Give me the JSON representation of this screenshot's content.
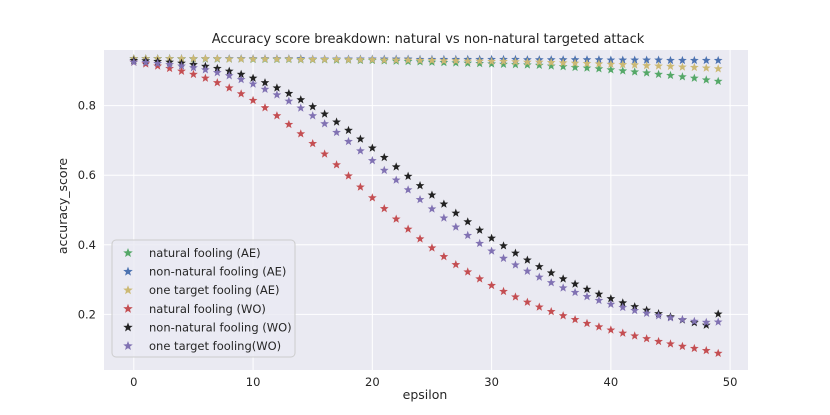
{
  "chart_data": {
    "type": "scatter",
    "title": "Accuracy score breakdown: natural vs non-natural targeted attack",
    "xlabel": "epsilon",
    "ylabel": "accuracy_score",
    "xlim": [
      -2.5,
      51.5
    ],
    "ylim": [
      0.04,
      0.96
    ],
    "xticks": [
      0,
      10,
      20,
      30,
      40,
      50
    ],
    "yticks": [
      0.2,
      0.4,
      0.6,
      0.8
    ],
    "ytick_labels": [
      "0.2",
      "0.4",
      "0.6",
      "0.8"
    ],
    "grid": true,
    "legend_position": "lower-left",
    "marker": "star",
    "x": [
      0,
      1,
      2,
      3,
      4,
      5,
      6,
      7,
      8,
      9,
      10,
      11,
      12,
      13,
      14,
      15,
      16,
      17,
      18,
      19,
      20,
      21,
      22,
      23,
      24,
      25,
      26,
      27,
      28,
      29,
      30,
      31,
      32,
      33,
      34,
      35,
      36,
      37,
      38,
      39,
      40,
      41,
      42,
      43,
      44,
      45,
      46,
      47,
      48,
      49
    ],
    "series": [
      {
        "name": "natural fooling (AE)",
        "color": "#55a868",
        "values": [
          0.935,
          0.935,
          0.935,
          0.935,
          0.934,
          0.934,
          0.934,
          0.934,
          0.934,
          0.934,
          0.933,
          0.933,
          0.933,
          0.933,
          0.932,
          0.932,
          0.932,
          0.931,
          0.931,
          0.93,
          0.93,
          0.929,
          0.928,
          0.927,
          0.926,
          0.925,
          0.924,
          0.923,
          0.922,
          0.921,
          0.92,
          0.919,
          0.918,
          0.917,
          0.916,
          0.914,
          0.912,
          0.91,
          0.908,
          0.906,
          0.903,
          0.9,
          0.897,
          0.894,
          0.89,
          0.887,
          0.883,
          0.879,
          0.874,
          0.87
        ]
      },
      {
        "name": "non-natural fooling (AE)",
        "color": "#4c72b0",
        "values": [
          0.935,
          0.935,
          0.935,
          0.935,
          0.935,
          0.935,
          0.935,
          0.935,
          0.935,
          0.935,
          0.935,
          0.935,
          0.935,
          0.935,
          0.935,
          0.934,
          0.934,
          0.934,
          0.934,
          0.934,
          0.934,
          0.934,
          0.934,
          0.934,
          0.933,
          0.933,
          0.933,
          0.933,
          0.933,
          0.933,
          0.933,
          0.933,
          0.933,
          0.932,
          0.932,
          0.932,
          0.932,
          0.932,
          0.932,
          0.932,
          0.931,
          0.931,
          0.931,
          0.931,
          0.931,
          0.93,
          0.93,
          0.93,
          0.93,
          0.93
        ]
      },
      {
        "name": "one target fooling (AE)",
        "color": "#dd8452",
        "fill": "#ccb974",
        "values": [
          0.935,
          0.935,
          0.935,
          0.935,
          0.935,
          0.935,
          0.935,
          0.935,
          0.934,
          0.934,
          0.934,
          0.934,
          0.934,
          0.934,
          0.933,
          0.933,
          0.933,
          0.933,
          0.932,
          0.932,
          0.932,
          0.931,
          0.931,
          0.931,
          0.93,
          0.93,
          0.929,
          0.929,
          0.928,
          0.928,
          0.927,
          0.927,
          0.926,
          0.925,
          0.925,
          0.924,
          0.923,
          0.922,
          0.921,
          0.92,
          0.919,
          0.918,
          0.917,
          0.915,
          0.914,
          0.913,
          0.911,
          0.91,
          0.908,
          0.906
        ]
      },
      {
        "name": "natural fooling (WO)",
        "color": "#c44e52",
        "values": [
          0.925,
          0.92,
          0.914,
          0.907,
          0.899,
          0.89,
          0.879,
          0.866,
          0.851,
          0.834,
          0.815,
          0.794,
          0.771,
          0.746,
          0.719,
          0.691,
          0.661,
          0.63,
          0.598,
          0.566,
          0.535,
          0.504,
          0.474,
          0.445,
          0.417,
          0.391,
          0.366,
          0.343,
          0.322,
          0.302,
          0.283,
          0.266,
          0.25,
          0.235,
          0.221,
          0.208,
          0.196,
          0.185,
          0.174,
          0.164,
          0.155,
          0.146,
          0.138,
          0.13,
          0.122,
          0.115,
          0.108,
          0.102,
          0.096,
          0.088
        ]
      },
      {
        "name": "non-natural fooling (WO)",
        "color": "#222222",
        "values": [
          0.93,
          0.929,
          0.927,
          0.925,
          0.922,
          0.918,
          0.913,
          0.907,
          0.899,
          0.89,
          0.879,
          0.866,
          0.851,
          0.835,
          0.817,
          0.797,
          0.776,
          0.753,
          0.729,
          0.704,
          0.678,
          0.651,
          0.624,
          0.597,
          0.57,
          0.543,
          0.517,
          0.491,
          0.466,
          0.442,
          0.419,
          0.397,
          0.376,
          0.356,
          0.337,
          0.319,
          0.302,
          0.287,
          0.272,
          0.258,
          0.245,
          0.233,
          0.222,
          0.212,
          0.202,
          0.193,
          0.184,
          0.176,
          0.169,
          0.201
        ]
      },
      {
        "name": "one target fooling(WO)",
        "color": "#8172b3",
        "values": [
          0.925,
          0.924,
          0.921,
          0.918,
          0.914,
          0.909,
          0.903,
          0.895,
          0.886,
          0.875,
          0.862,
          0.847,
          0.831,
          0.813,
          0.793,
          0.771,
          0.748,
          0.723,
          0.697,
          0.67,
          0.642,
          0.614,
          0.586,
          0.558,
          0.53,
          0.503,
          0.477,
          0.451,
          0.427,
          0.404,
          0.382,
          0.361,
          0.342,
          0.324,
          0.307,
          0.291,
          0.276,
          0.263,
          0.251,
          0.24,
          0.229,
          0.22,
          0.211,
          0.203,
          0.196,
          0.19,
          0.185,
          0.18,
          0.177,
          0.178
        ]
      }
    ]
  }
}
